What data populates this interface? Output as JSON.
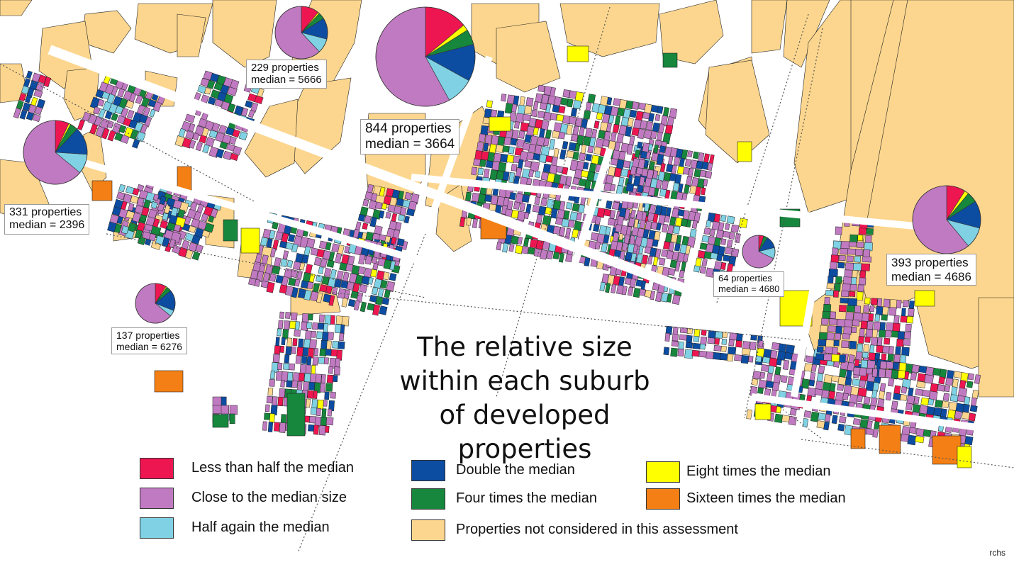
{
  "colors": {
    "less_than_half": "#ed1651",
    "close_to_median": "#c07ac1",
    "half_again": "#7fd1e3",
    "double": "#0c4da2",
    "four_times": "#16873d",
    "eight_times": "#ffff00",
    "sixteen_times": "#f47f14",
    "not_considered": "#fcd68e",
    "road_line": "#555555",
    "outline": "#222222",
    "background": "#ffffff"
  },
  "title": {
    "line1": "The relative size",
    "line2": "within each suburb",
    "line3": "of developed  properties"
  },
  "suburbs": [
    {
      "id": "s229",
      "properties": "229 properties",
      "median": "median = 5666",
      "pie": {
        "less_than_half": 0.11,
        "eight_times": 0.01,
        "four_times": 0.04,
        "double": 0.13,
        "half_again": 0.09,
        "close_to_median": 0.62
      }
    },
    {
      "id": "s844",
      "properties": "844 properties",
      "median": "median = 3664",
      "pie": {
        "less_than_half": 0.14,
        "eight_times": 0.02,
        "four_times": 0.05,
        "double": 0.12,
        "half_again": 0.09,
        "close_to_median": 0.58
      }
    },
    {
      "id": "s331",
      "properties": "331 properties",
      "median": "median = 2396",
      "pie": {
        "less_than_half": 0.07,
        "eight_times": 0.01,
        "four_times": 0.04,
        "double": 0.14,
        "half_again": 0.1,
        "close_to_median": 0.64
      }
    },
    {
      "id": "s137",
      "properties": "137 properties",
      "median": "median = 6276",
      "pie": {
        "less_than_half": 0.09,
        "eight_times": 0.01,
        "four_times": 0.04,
        "double": 0.17,
        "half_again": 0.05,
        "close_to_median": 0.64
      }
    },
    {
      "id": "s64",
      "properties": "64 properties",
      "median": "median = 4680",
      "pie": {
        "less_than_half": 0.05,
        "four_times": 0.04,
        "double": 0.12,
        "half_again": 0.11,
        "close_to_median": 0.68
      }
    },
    {
      "id": "s393",
      "properties": "393 properties",
      "median": "median = 4686",
      "pie": {
        "less_than_half": 0.09,
        "eight_times": 0.02,
        "four_times": 0.05,
        "double": 0.13,
        "half_again": 0.1,
        "close_to_median": 0.61
      }
    }
  ],
  "legend": [
    {
      "key": "less_than_half",
      "label": "Less than half the median"
    },
    {
      "key": "close_to_median",
      "label": "Close to the median size"
    },
    {
      "key": "half_again",
      "label": "Half again the median"
    },
    {
      "key": "double",
      "label": "Double the median"
    },
    {
      "key": "four_times",
      "label": "Four times the median"
    },
    {
      "key": "not_considered",
      "label": "Properties not considered in this assessment"
    },
    {
      "key": "eight_times",
      "label": "Eight times the median"
    },
    {
      "key": "sixteen_times",
      "label": "Sixteen times the median"
    }
  ],
  "credit": "rchs"
}
